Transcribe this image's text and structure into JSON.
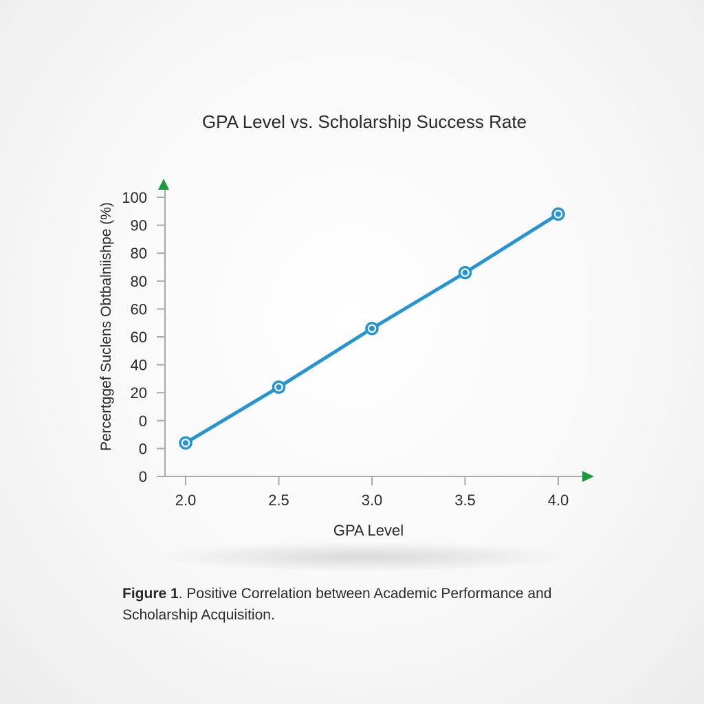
{
  "chart_data": {
    "type": "line",
    "title": "GPA Level vs. Scholarship Success Rate",
    "xlabel": "GPA Level",
    "ylabel": "Percertggef Suclens Obtbalniishpe (%)",
    "x_tick_labels": [
      "2.0",
      "2.5",
      "3.0",
      "3.5",
      "4.0"
    ],
    "y_tick_labels": [
      "100",
      "90",
      "80",
      "80",
      "60",
      "60",
      "40",
      "20",
      "0",
      "0",
      "0"
    ],
    "x": [
      2.0,
      2.5,
      3.0,
      3.5,
      4.0
    ],
    "y": [
      12,
      32,
      53,
      73,
      94
    ],
    "xlim": [
      1.89,
      4.16
    ],
    "ylim": [
      0,
      100
    ],
    "grid": false,
    "line_color": "#2494d2",
    "axis_arrow_color": "#1a9a3a",
    "axis_color": "#aaaaaa"
  },
  "caption": {
    "label": "Figure 1",
    "text": ". Positive Correlation between Academic Performance and Scholarship Acquisition."
  }
}
